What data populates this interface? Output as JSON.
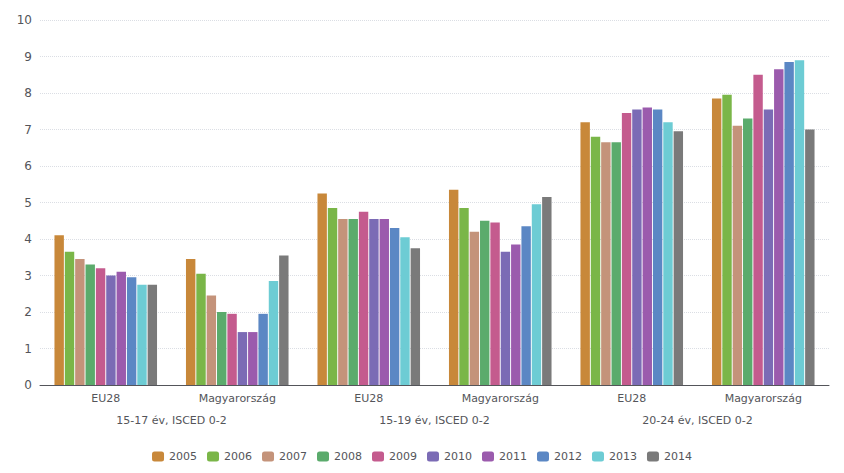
{
  "chart_data": {
    "type": "bar",
    "categories": [
      "EU28",
      "Magyarország",
      "EU28",
      "Magyarország",
      "EU28",
      "Magyarország"
    ],
    "annotations": [
      "15-17 év, ISCED 0-2",
      "15-19 év, ISCED 0-2",
      "20-24 év, ISCED 0-2"
    ],
    "series": [
      {
        "name": "2005",
        "color": "#c8883a",
        "values": [
          4.1,
          3.45,
          5.25,
          5.35,
          7.2,
          7.85
        ]
      },
      {
        "name": "2006",
        "color": "#7ab648",
        "values": [
          3.65,
          3.05,
          4.85,
          4.85,
          6.8,
          7.95
        ]
      },
      {
        "name": "2007",
        "color": "#c4937a",
        "values": [
          3.45,
          2.45,
          4.55,
          4.2,
          6.65,
          7.1
        ]
      },
      {
        "name": "2008",
        "color": "#5bab6c",
        "values": [
          3.3,
          2.0,
          4.55,
          4.5,
          6.65,
          7.3
        ]
      },
      {
        "name": "2009",
        "color": "#c45b8e",
        "values": [
          3.2,
          1.95,
          4.75,
          4.45,
          7.45,
          8.5
        ]
      },
      {
        "name": "2010",
        "color": "#7b6bb5",
        "values": [
          3.0,
          1.45,
          4.55,
          3.65,
          7.55,
          7.55
        ]
      },
      {
        "name": "2011",
        "color": "#9b5bad",
        "values": [
          3.1,
          1.45,
          4.55,
          3.85,
          7.6,
          8.65
        ]
      },
      {
        "name": "2012",
        "color": "#5b87c4",
        "values": [
          2.95,
          1.95,
          4.3,
          4.35,
          7.55,
          8.85
        ]
      },
      {
        "name": "2013",
        "color": "#6dccd4",
        "values": [
          2.75,
          2.85,
          4.05,
          4.95,
          7.2,
          8.9
        ]
      },
      {
        "name": "2014",
        "color": "#7a7a7a",
        "values": [
          2.75,
          3.55,
          3.75,
          5.15,
          6.95,
          7.0
        ]
      }
    ],
    "ylim": [
      0,
      10
    ],
    "yticks": [
      0,
      1,
      2,
      3,
      4,
      5,
      6,
      7,
      8,
      9,
      10
    ],
    "grid": true,
    "legend": "bottom"
  }
}
